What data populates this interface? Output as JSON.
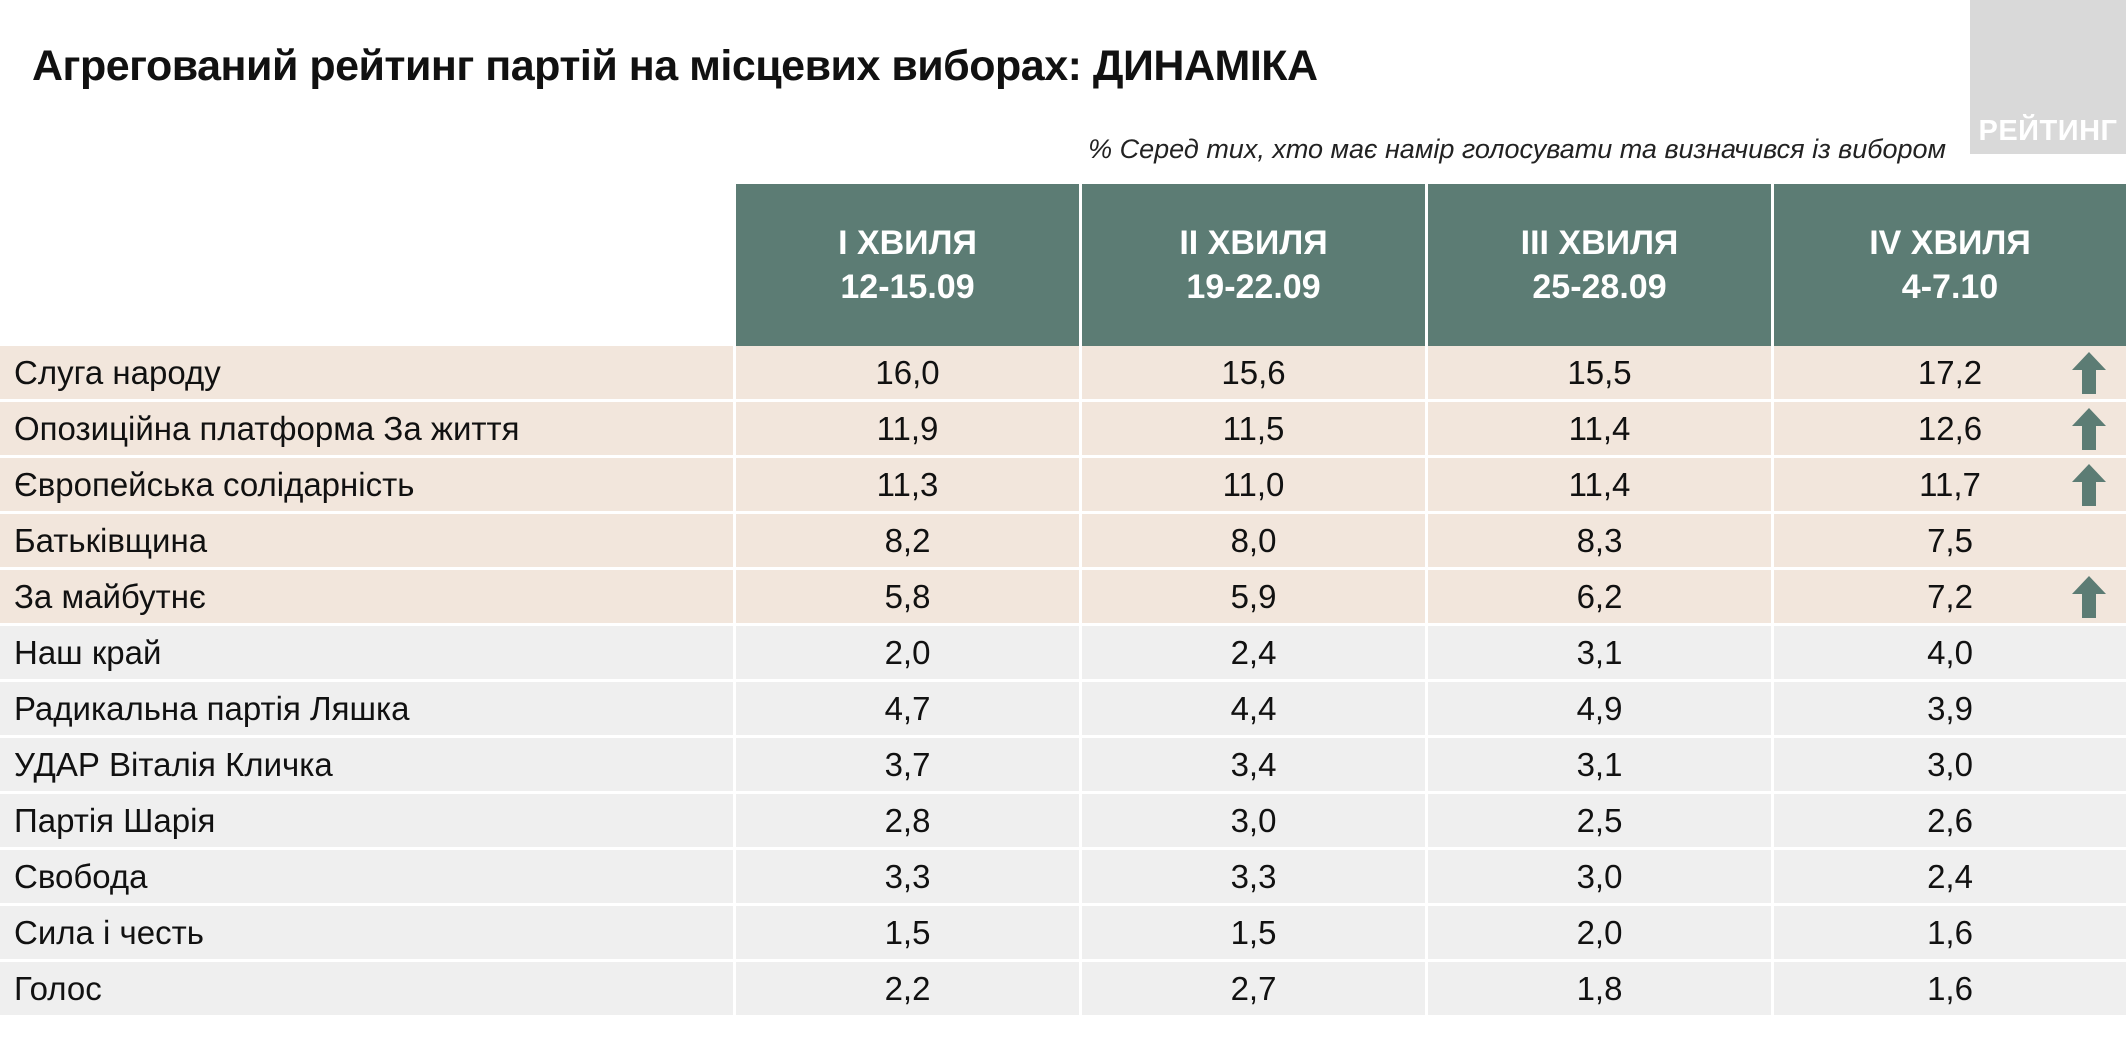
{
  "title": "Агрегований рейтинг партій на місцевих виборах: ДИНАМІКА",
  "subtitle": "% Серед тих, хто має намір голосувати та визначився із вибором",
  "logo_text": "РЕЙТИНГ",
  "colors": {
    "header_bg": "#5c7c74",
    "highlight_row": "#f2e6dc",
    "normal_row": "#efefef",
    "arrow": "#5c7c74",
    "logo_bg": "#d9d9d9"
  },
  "chart_data": {
    "type": "table",
    "title": "Агрегований рейтинг партій на місцевих виборах: ДИНАМІКА",
    "subtitle": "% Серед тих, хто має намір голосувати та визначився із вибором",
    "columns": [
      {
        "label": "I ХВИЛЯ",
        "dates": "12-15.09"
      },
      {
        "label": "II ХВИЛЯ",
        "dates": "19-22.09"
      },
      {
        "label": "III ХВИЛЯ",
        "dates": "25-28.09"
      },
      {
        "label": "IV ХВИЛЯ",
        "dates": "4-7.10"
      }
    ],
    "rows": [
      {
        "name": "Слуга народу",
        "values": [
          "16,0",
          "15,6",
          "15,5",
          "17,2"
        ],
        "highlight": true,
        "trend_up": true
      },
      {
        "name": "Опозиційна платформа За життя",
        "values": [
          "11,9",
          "11,5",
          "11,4",
          "12,6"
        ],
        "highlight": true,
        "trend_up": true
      },
      {
        "name": "Європейська солідарність",
        "values": [
          "11,3",
          "11,0",
          "11,4",
          "11,7"
        ],
        "highlight": true,
        "trend_up": true
      },
      {
        "name": "Батьківщина",
        "values": [
          "8,2",
          "8,0",
          "8,3",
          "7,5"
        ],
        "highlight": true,
        "trend_up": false
      },
      {
        "name": "За майбутнє",
        "values": [
          "5,8",
          "5,9",
          "6,2",
          "7,2"
        ],
        "highlight": true,
        "trend_up": true
      },
      {
        "name": "Наш край",
        "values": [
          "2,0",
          "2,4",
          "3,1",
          "4,0"
        ],
        "highlight": false,
        "trend_up": false
      },
      {
        "name": "Радикальна партія Ляшка",
        "values": [
          "4,7",
          "4,4",
          "4,9",
          "3,9"
        ],
        "highlight": false,
        "trend_up": false
      },
      {
        "name": "УДАР Віталія Кличка",
        "values": [
          "3,7",
          "3,4",
          "3,1",
          "3,0"
        ],
        "highlight": false,
        "trend_up": false
      },
      {
        "name": "Партія Шарія",
        "values": [
          "2,8",
          "3,0",
          "2,5",
          "2,6"
        ],
        "highlight": false,
        "trend_up": false
      },
      {
        "name": "Свобода",
        "values": [
          "3,3",
          "3,3",
          "3,0",
          "2,4"
        ],
        "highlight": false,
        "trend_up": false
      },
      {
        "name": "Сила і честь",
        "values": [
          "1,5",
          "1,5",
          "2,0",
          "1,6"
        ],
        "highlight": false,
        "trend_up": false
      },
      {
        "name": "Голос",
        "values": [
          "2,2",
          "2,7",
          "1,8",
          "1,6"
        ],
        "highlight": false,
        "trend_up": false
      }
    ]
  }
}
